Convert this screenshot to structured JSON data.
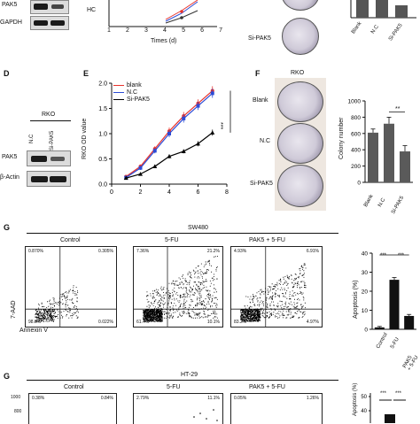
{
  "top": {
    "blot_labels": [
      "PAK5",
      "GAPDH"
    ],
    "growth_ylabel": "HC",
    "growth_xticks": [
      "1",
      "2",
      "3",
      "4",
      "5",
      "6",
      "7"
    ],
    "growth_xlabel": "Times (d)",
    "dish_label": "Si-PAK5",
    "bar_xlabels": [
      "Blank",
      "N.C",
      "Si-PAK5"
    ]
  },
  "panelD": {
    "letter": "D",
    "cell_line": "RKO",
    "lanes": [
      "N.C",
      "Si-PAK5"
    ],
    "rows": [
      "PAK5",
      "β-Actin"
    ]
  },
  "panelE": {
    "letter": "E",
    "ylabel": "RKO OD value",
    "sig": "***",
    "legend": [
      {
        "name": "blank",
        "color": "#e8332c"
      },
      {
        "name": "N.C",
        "color": "#2b4bd6"
      },
      {
        "name": "Si-PAK5",
        "color": "#000000"
      }
    ]
  },
  "panelF": {
    "letter": "F",
    "cell_line": "RKO",
    "dish_labels": [
      "Blank",
      "N.C",
      "Si-PAK5"
    ],
    "ylabel": "Colony number",
    "sig": "**"
  },
  "panelG": {
    "letter": "G",
    "cell_line": "SW480",
    "yaxis": "7-AAD",
    "xaxis": "Annexin V",
    "plots": [
      {
        "title": "Control",
        "q": [
          "0.870%",
          "0.305%",
          "98.8%",
          "0.022%"
        ]
      },
      {
        "title": "5-FU",
        "q": [
          "7.36%",
          "21.2%",
          "61.4%",
          "10.1%"
        ]
      },
      {
        "title": "PAK5 + 5-FU",
        "q": [
          "4.93%",
          "6.91%",
          "83.2%",
          "4.97%"
        ]
      }
    ],
    "bar_ylabel": "Apoptosis (%)",
    "bar_sigs": [
      "***",
      "***"
    ],
    "bar_xlabels": [
      "Control",
      "5-FU",
      "PAK5 + 5-FU"
    ]
  },
  "panelG2": {
    "letter": "G",
    "cell_line": "HT-29",
    "plots": [
      {
        "title": "Control",
        "q": [
          "0.38%",
          "0.84%"
        ]
      },
      {
        "title": "5-FU",
        "q": [
          "2.79%",
          "11.1%"
        ]
      },
      {
        "title": "PAK5 + 5-FU",
        "q": [
          "0.05%",
          "1.26%"
        ]
      }
    ],
    "yticks": [
      "1000",
      "800"
    ],
    "bar_ylabel": "Apoptosis (%)",
    "bar_sigs": [
      "***",
      "***"
    ]
  },
  "chart_data": [
    {
      "type": "line",
      "panel": "E",
      "xlabel": "",
      "ylabel": "RKO OD value",
      "x": [
        1,
        2,
        3,
        4,
        5,
        6,
        7
      ],
      "xlim": [
        0,
        8
      ],
      "ylim": [
        0,
        2.0
      ],
      "xticks": [
        0,
        2,
        4,
        6,
        8
      ],
      "yticks": [
        0,
        0.5,
        1.0,
        1.5,
        2.0
      ],
      "series": [
        {
          "name": "blank",
          "color": "#e8332c",
          "values": [
            0.15,
            0.35,
            0.7,
            1.05,
            1.35,
            1.6,
            1.85
          ],
          "err": [
            0.02,
            0.04,
            0.05,
            0.07,
            0.08,
            0.08,
            0.09
          ]
        },
        {
          "name": "N.C",
          "color": "#2b4bd6",
          "values": [
            0.13,
            0.32,
            0.66,
            1.0,
            1.3,
            1.55,
            1.8
          ],
          "err": [
            0.02,
            0.04,
            0.05,
            0.07,
            0.08,
            0.08,
            0.09
          ]
        },
        {
          "name": "Si-PAK5",
          "color": "#000000",
          "values": [
            0.12,
            0.2,
            0.35,
            0.55,
            0.65,
            0.8,
            1.02
          ],
          "err": [
            0.01,
            0.02,
            0.03,
            0.04,
            0.04,
            0.05,
            0.06
          ]
        }
      ]
    },
    {
      "type": "bar",
      "panel": "F",
      "xlabel": "",
      "ylabel": "Colony number",
      "categories": [
        "Blank",
        "N.C",
        "Si-PAK5"
      ],
      "values": [
        610,
        720,
        380
      ],
      "err": [
        45,
        80,
        70
      ],
      "ylim": [
        0,
        1000
      ],
      "yticks": [
        0,
        200,
        400,
        600,
        800,
        1000
      ]
    },
    {
      "type": "bar",
      "panel": "G",
      "xlabel": "",
      "ylabel": "Apoptosis (%)",
      "categories": [
        "Control",
        "5-FU",
        "PAK5 + 5-FU"
      ],
      "values": [
        1,
        26,
        7
      ],
      "err": [
        0.5,
        1.2,
        0.8
      ],
      "ylim": [
        0,
        40
      ],
      "yticks": [
        0,
        10,
        20,
        30,
        40
      ]
    }
  ]
}
